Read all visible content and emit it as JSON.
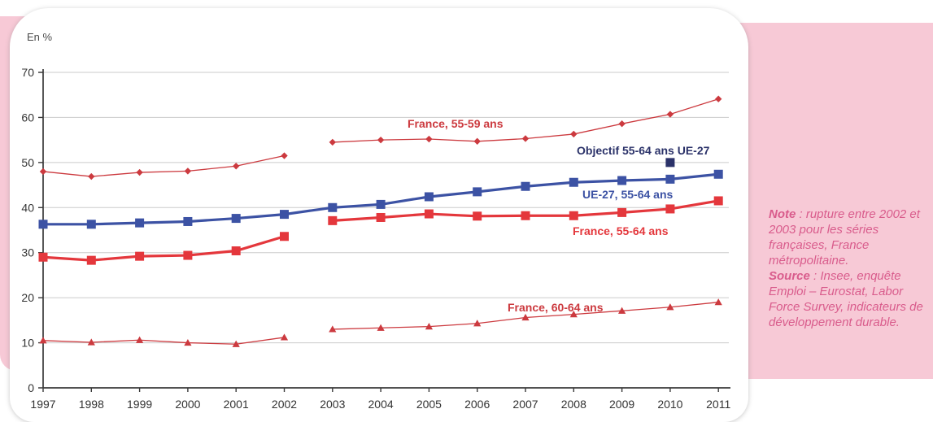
{
  "chart_data": {
    "type": "line",
    "unit_label": "En %",
    "x": [
      1997,
      1998,
      1999,
      2000,
      2001,
      2002,
      2003,
      2004,
      2005,
      2006,
      2007,
      2008,
      2009,
      2010,
      2011
    ],
    "ylim": [
      0,
      70
    ],
    "yticks": [
      0,
      10,
      20,
      30,
      40,
      50,
      60,
      70
    ],
    "grid": "horizontal",
    "legend_position": "inline-labels",
    "series": [
      {
        "id": "france-55-59",
        "name": "France, 55-59 ans",
        "color": "#cc3a3f",
        "marker": "diamond",
        "line_width": 1.3,
        "break_after": 2002,
        "values": [
          48.0,
          46.9,
          47.8,
          48.1,
          49.2,
          51.5,
          54.5,
          55.0,
          55.2,
          54.7,
          55.3,
          56.3,
          58.6,
          60.7,
          64.1
        ]
      },
      {
        "id": "ue27-55-64",
        "name": "UE-27, 55-64 ans",
        "color": "#3c52a4",
        "marker": "square",
        "line_width": 3.2,
        "break_after": null,
        "values": [
          36.3,
          36.3,
          36.6,
          36.9,
          37.6,
          38.5,
          40.0,
          40.7,
          42.4,
          43.5,
          44.7,
          45.6,
          46.0,
          46.3,
          47.4
        ]
      },
      {
        "id": "france-55-64",
        "name": "France, 55-64 ans",
        "color": "#e4373c",
        "marker": "square",
        "line_width": 3.2,
        "break_after": 2002,
        "values": [
          29.0,
          28.3,
          29.2,
          29.4,
          30.4,
          33.6,
          37.1,
          37.8,
          38.6,
          38.1,
          38.2,
          38.2,
          38.9,
          39.7,
          41.5
        ]
      },
      {
        "id": "france-60-64",
        "name": "France, 60-64 ans",
        "color": "#cc3a3f",
        "marker": "triangle",
        "line_width": 1.3,
        "break_after": 2002,
        "values": [
          10.5,
          10.1,
          10.6,
          10.0,
          9.7,
          11.2,
          13.0,
          13.3,
          13.6,
          14.3,
          15.6,
          16.3,
          17.1,
          17.9,
          19.0
        ]
      }
    ],
    "objective": {
      "id": "objective",
      "label": "Objectif 55-64 ans UE-27",
      "x": 2010,
      "value": 50,
      "color": "#2b3269"
    }
  },
  "note_panel": {
    "note_label": "Note",
    "note_body": " : rupture entre 2002 et 2003 pour les séries françaises, France métropolitaine.",
    "source_label": "Source",
    "source_body": " : Insee, enquête Emploi – Eurostat, Labor Force Survey, indicateurs de développement durable."
  },
  "colors": {
    "panel_pink": "#f7c9d6",
    "note_text": "#d95c8c",
    "axis": "#3a3a3a",
    "grid": "#cbcbcb"
  }
}
